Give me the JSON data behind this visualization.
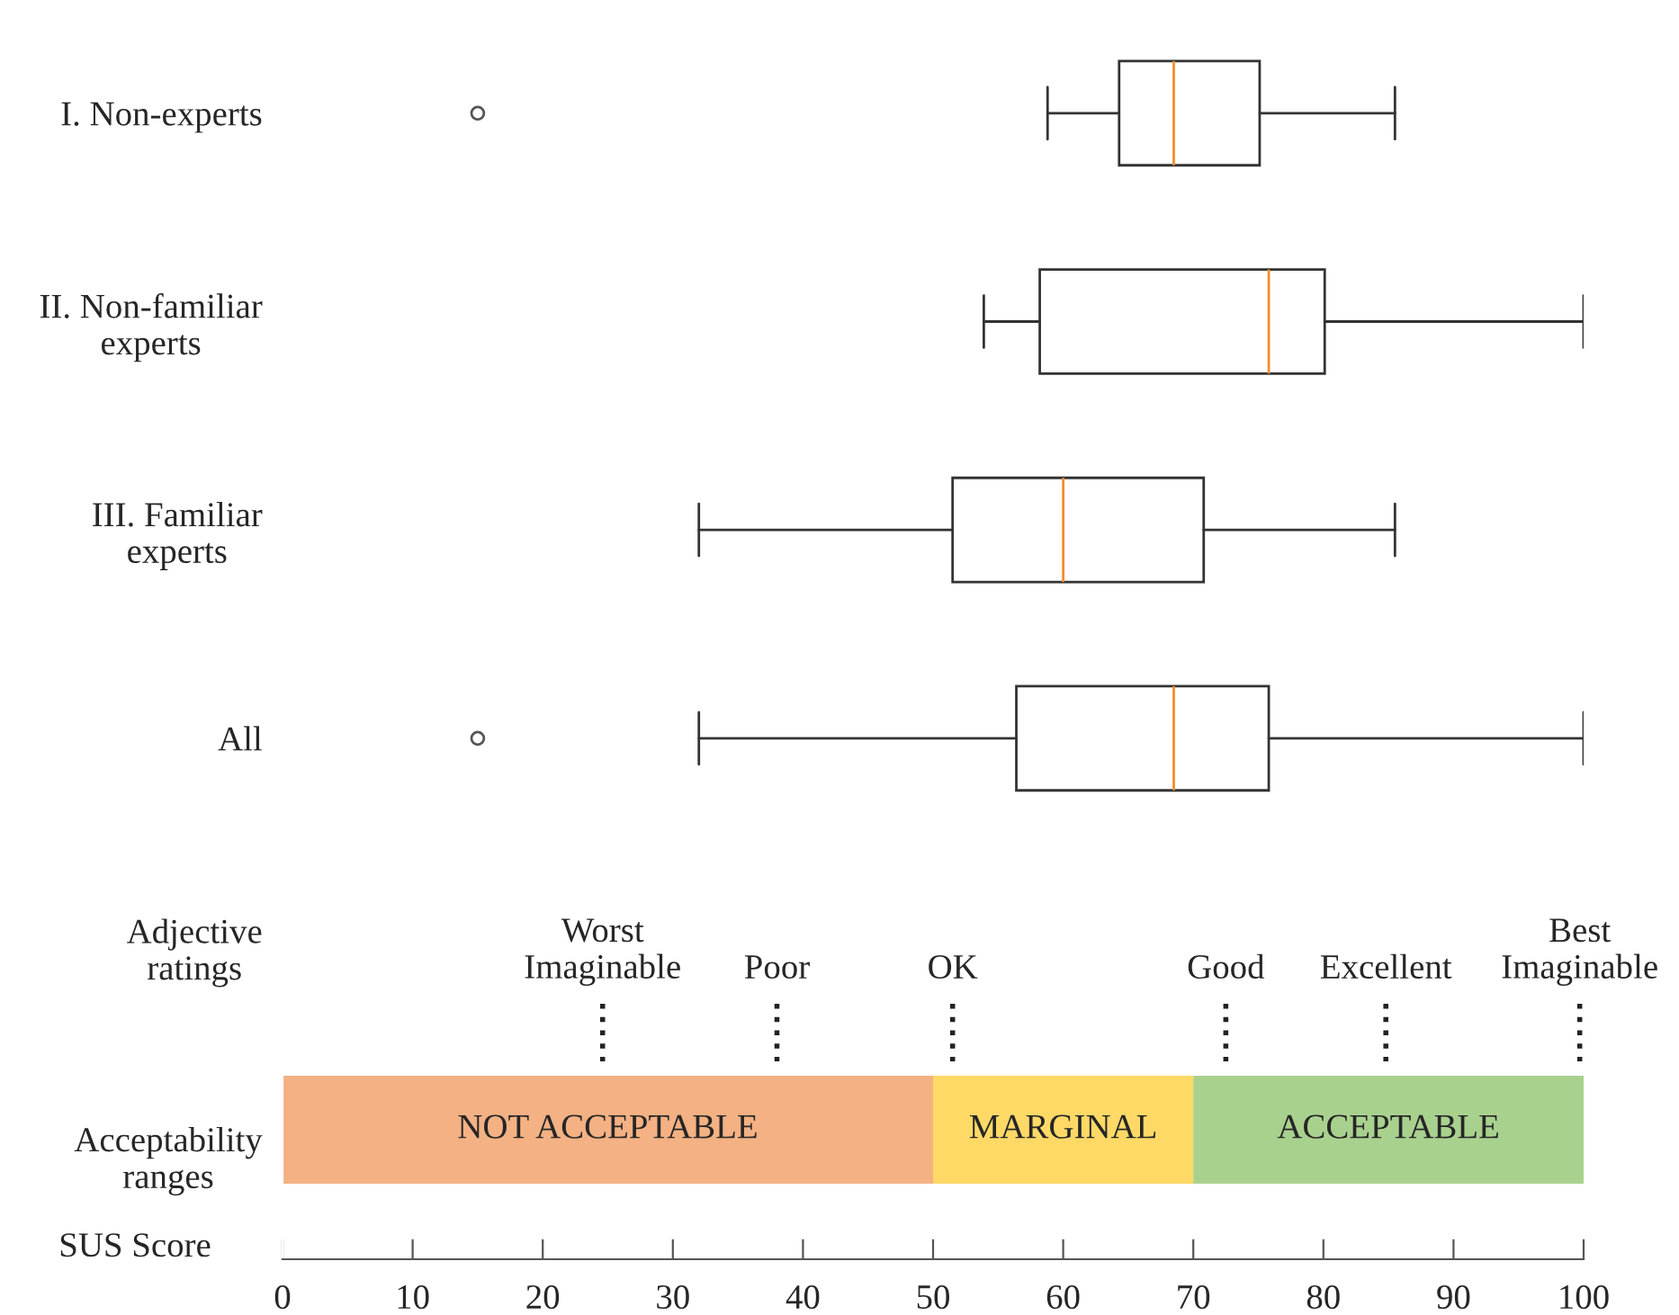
{
  "chart_data": {
    "type": "box",
    "orientation": "horizontal",
    "categories": [
      "I. Non-experts",
      "II. Non-familiar\nexperts",
      "III. Familiar\nexperts",
      "All",
      "Adjective\nratings",
      "Acceptability\nranges"
    ],
    "boxes": [
      {
        "low": 58.8,
        "q1": 64.3,
        "median": 68.5,
        "q3": 75.1,
        "high": 85.5,
        "outliers": [
          15
        ]
      },
      {
        "low": 53.9,
        "q1": 58.2,
        "median": 75.8,
        "q3": 80.1,
        "high": 100
      },
      {
        "low": 32,
        "q1": 51.5,
        "median": 60,
        "q3": 70.8,
        "high": 85.5
      },
      {
        "low": 32,
        "q1": 56.4,
        "median": 68.5,
        "q3": 75.8,
        "high": 100,
        "outliers": [
          15
        ]
      },
      null,
      null
    ],
    "xlim": [
      0,
      100
    ],
    "xticks": [
      0,
      10,
      20,
      30,
      40,
      50,
      60,
      70,
      80,
      90,
      100
    ],
    "xlabel": "SUS Score",
    "ref_lines": [
      {
        "axis": "x",
        "value": 24.6,
        "label": "Worst\nImaginable",
        "line_style": "dotted"
      },
      {
        "axis": "x",
        "value": 38,
        "label": "Poor",
        "line_style": "dotted"
      },
      {
        "axis": "x",
        "value": 51.5,
        "label": "OK",
        "line_style": "dotted"
      },
      {
        "axis": "x",
        "value": 72.5,
        "label": "Good",
        "line_style": "dotted"
      },
      {
        "axis": "x",
        "value": 84.8,
        "label": "Excellent",
        "line_style": "dotted"
      },
      {
        "axis": "x",
        "value": 99.7,
        "label": "Best\nImaginable",
        "line_style": "dotted"
      }
    ],
    "bands": [
      {
        "axis": "x",
        "from": 0,
        "to": 50,
        "label": "NOT ACCEPTABLE",
        "color": "#f4b183"
      },
      {
        "axis": "x",
        "from": 50,
        "to": 70,
        "label": "MARGINAL",
        "color": "#ffd966"
      },
      {
        "axis": "x",
        "from": 70,
        "to": 100,
        "label": "ACCEPTABLE",
        "color": "#a9d18e"
      }
    ],
    "grid": false
  }
}
